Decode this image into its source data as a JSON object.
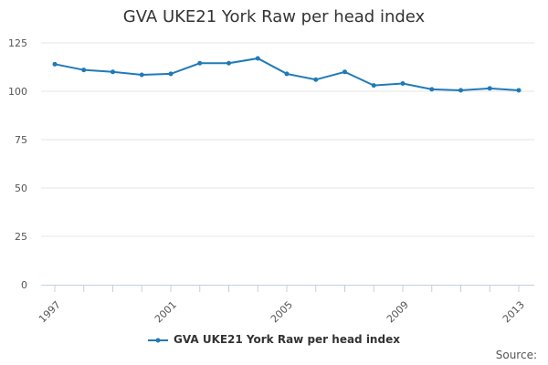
{
  "chart_data": {
    "type": "line",
    "title": "GVA UKE21 York Raw per head index",
    "xlabel": "",
    "ylabel": "",
    "x": [
      1997,
      1998,
      1999,
      2000,
      2001,
      2002,
      2003,
      2004,
      2005,
      2006,
      2007,
      2008,
      2009,
      2010,
      2011,
      2012,
      2013
    ],
    "x_tick_labels": [
      "1997",
      "2001",
      "2005",
      "2009",
      "2013"
    ],
    "y_tick_labels": [
      "0",
      "25",
      "50",
      "75",
      "100",
      "125"
    ],
    "ylim": [
      0,
      125
    ],
    "grid": true,
    "legend_position": "bottom",
    "series": [
      {
        "name": "GVA UKE21 York Raw per head index",
        "color": "#1f7ab8",
        "values": [
          114,
          111,
          110,
          108.5,
          109,
          114.5,
          114.5,
          117,
          109,
          106,
          110,
          103,
          104,
          101,
          100.5,
          101.5,
          100.5
        ]
      }
    ]
  },
  "source_label": "Source:"
}
